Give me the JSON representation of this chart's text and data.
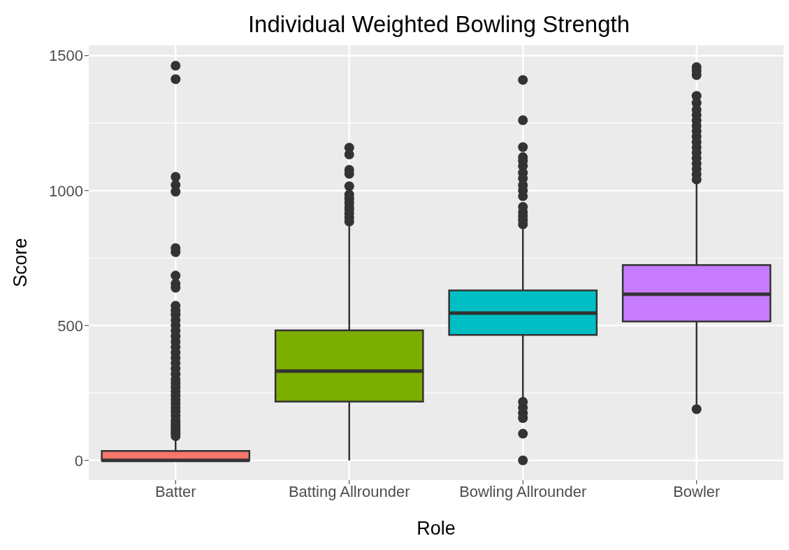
{
  "chart_data": {
    "type": "box",
    "title": "Individual Weighted Bowling Strength",
    "xlabel": "Role",
    "ylabel": "Score",
    "categories": [
      "Batter",
      "Batting Allrounder",
      "Bowling Allrounder",
      "Bowler"
    ],
    "colors": [
      "#f8766d",
      "#7cae00",
      "#00bfc4",
      "#c77cff"
    ],
    "boxes": [
      {
        "low": 0,
        "q1": 0,
        "median": 0,
        "q3": 35,
        "high": 85,
        "outliers": [
          90,
          100,
          110,
          120,
          130,
          140,
          150,
          165,
          180,
          195,
          210,
          225,
          240,
          255,
          270,
          285,
          300,
          320,
          340,
          360,
          380,
          400,
          420,
          440,
          460,
          480,
          500,
          520,
          540,
          555,
          573,
          640,
          655,
          685,
          772,
          787,
          996,
          1021,
          1051,
          1413,
          1463
        ]
      },
      {
        "low": 0,
        "q1": 218,
        "median": 331,
        "q3": 482,
        "high": 868,
        "outliers": [
          885,
          900,
          915,
          930,
          940,
          955,
          970,
          985,
          1016,
          1062,
          1077,
          1134,
          1159
        ]
      },
      {
        "low": 228,
        "q1": 465,
        "median": 546,
        "q3": 630,
        "high": 858,
        "outliers": [
          0,
          99,
          157,
          175,
          195,
          217,
          875,
          890,
          905,
          920,
          940,
          979,
          1000,
          1020,
          1045,
          1066,
          1091,
          1110,
          1124,
          1161,
          1261,
          1410
        ]
      },
      {
        "low": 207,
        "q1": 515,
        "median": 616,
        "q3": 724,
        "high": 1027,
        "outliers": [
          190,
          1041,
          1060,
          1080,
          1100,
          1120,
          1140,
          1160,
          1180,
          1200,
          1220,
          1240,
          1260,
          1280,
          1300,
          1325,
          1351,
          1428,
          1445,
          1458
        ]
      }
    ],
    "ylim": [
      -73,
      1538
    ],
    "yticks": [
      0,
      500,
      1000,
      1500
    ],
    "grid": true
  }
}
